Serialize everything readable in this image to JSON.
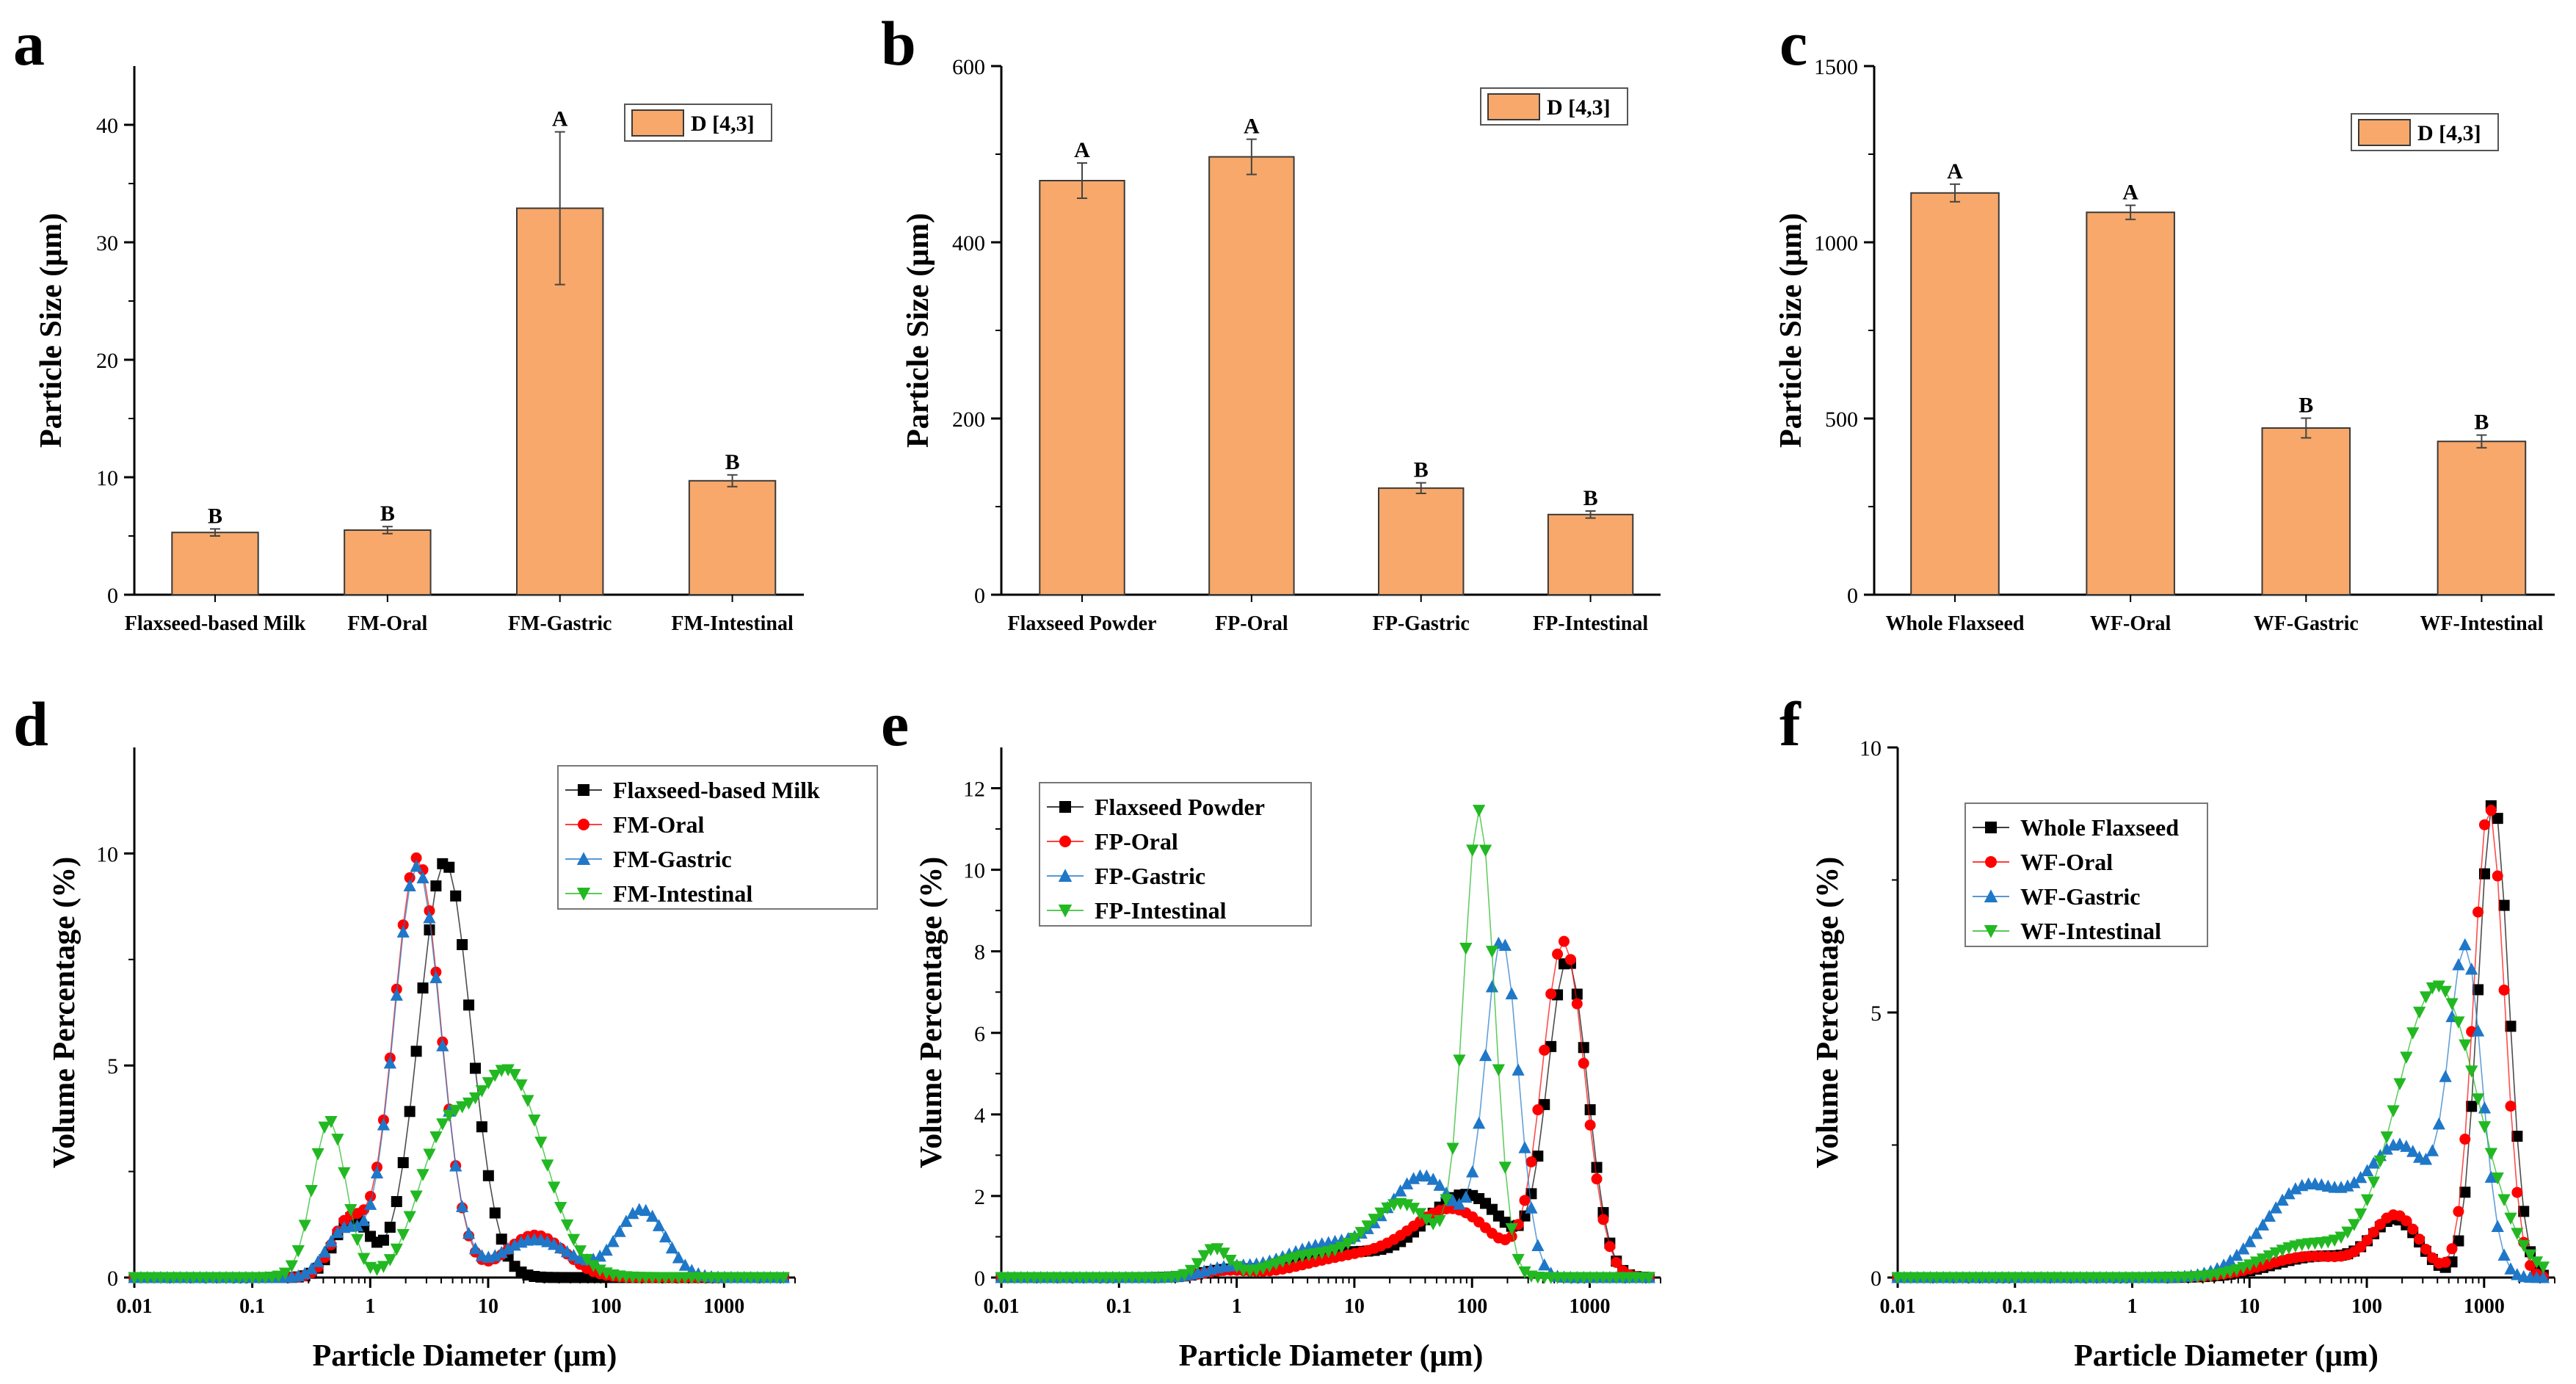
{
  "colors": {
    "bar_fill": "#F7A86A",
    "bar_stroke": "#3a3a3a",
    "series": [
      "#000000",
      "#FF0000",
      "#1F77C8",
      "#22B822"
    ]
  },
  "chart_data": [
    {
      "panel": "a",
      "type": "bar",
      "title": "",
      "xlabel": "",
      "ylabel": "Particle Size (μm)",
      "ylim": [
        0,
        45
      ],
      "yticks": [
        0,
        10,
        20,
        30,
        40
      ],
      "categories": [
        "Flaxseed-based Milk",
        "FM-Oral",
        "FM-Gastric",
        "FM-Intestinal"
      ],
      "values": [
        5.3,
        5.5,
        32.9,
        9.7
      ],
      "errors": [
        0.3,
        0.3,
        6.5,
        0.5
      ],
      "labels": [
        "B",
        "B",
        "A",
        "B"
      ],
      "legend": [
        "D [4,3]"
      ],
      "legend_position": "top-right"
    },
    {
      "panel": "b",
      "type": "bar",
      "title": "",
      "xlabel": "",
      "ylabel": "Particle Size (μm)",
      "ylim": [
        0,
        600
      ],
      "yticks": [
        0,
        200,
        400,
        600
      ],
      "categories": [
        "Flaxseed Powder",
        "FP-Oral",
        "FP-Gastric",
        "FP-Intestinal"
      ],
      "values": [
        470,
        497,
        121,
        91
      ],
      "errors": [
        20,
        20,
        6,
        4
      ],
      "labels": [
        "A",
        "A",
        "B",
        "B"
      ],
      "legend": [
        "D [4,3]"
      ],
      "legend_position": "top-right"
    },
    {
      "panel": "c",
      "type": "bar",
      "title": "",
      "xlabel": "",
      "ylabel": "Particle Size (μm)",
      "ylim": [
        0,
        1500
      ],
      "yticks": [
        0,
        500,
        1000,
        1500
      ],
      "categories": [
        "Whole Flaxseed",
        "WF-Oral",
        "WF-Gastric",
        "WF-Intestinal"
      ],
      "values": [
        1140,
        1085,
        473,
        435
      ],
      "errors": [
        25,
        20,
        28,
        18
      ],
      "labels": [
        "A",
        "A",
        "B",
        "B"
      ],
      "legend": [
        "D [4,3]"
      ],
      "legend_position": "top-right"
    },
    {
      "panel": "d",
      "type": "scatter",
      "xscale": "log",
      "xlim": [
        0.01,
        4000
      ],
      "xticks": [
        0.01,
        0.1,
        1,
        10,
        100,
        1000
      ],
      "xtick_labels": [
        "0.01",
        "0.1",
        "1",
        "10",
        "100",
        "1000"
      ],
      "ylim": [
        0,
        12.5
      ],
      "yticks": [
        0,
        5,
        10
      ],
      "xlabel": "Particle Diameter (μm)",
      "ylabel": "Volume Percentage (%)",
      "legend_position": "top-right",
      "series": [
        {
          "name": "Flaxseed-based Milk",
          "marker": "square",
          "peaks": [
            {
              "x": 0.7,
              "h": 1.4,
              "w": 0.15
            },
            {
              "x": 4.3,
              "h": 9.8,
              "w": 0.22
            }
          ]
        },
        {
          "name": "FM-Oral",
          "marker": "circle",
          "peaks": [
            {
              "x": 0.65,
              "h": 1.3,
              "w": 0.14
            },
            {
              "x": 2.5,
              "h": 9.9,
              "w": 0.2
            },
            {
              "x": 25,
              "h": 1.0,
              "w": 0.25
            }
          ]
        },
        {
          "name": "FM-Gastric",
          "marker": "triangle-up",
          "peaks": [
            {
              "x": 0.6,
              "h": 1.1,
              "w": 0.15
            },
            {
              "x": 2.5,
              "h": 9.7,
              "w": 0.2
            },
            {
              "x": 25,
              "h": 0.9,
              "w": 0.3
            },
            {
              "x": 200,
              "h": 1.6,
              "w": 0.2
            }
          ]
        },
        {
          "name": "FM-Intestinal",
          "marker": "triangle-down",
          "peaks": [
            {
              "x": 0.45,
              "h": 3.7,
              "w": 0.14
            },
            {
              "x": 4,
              "h": 2.8,
              "w": 0.22
            },
            {
              "x": 15,
              "h": 4.8,
              "w": 0.3
            }
          ]
        }
      ]
    },
    {
      "panel": "e",
      "type": "scatter",
      "xscale": "log",
      "xlim": [
        0.01,
        4000
      ],
      "xticks": [
        0.01,
        0.1,
        1,
        10,
        100,
        1000
      ],
      "xtick_labels": [
        "0.01",
        "0.1",
        "1",
        "10",
        "100",
        "1000"
      ],
      "ylim": [
        0,
        13
      ],
      "yticks": [
        0,
        2,
        4,
        6,
        8,
        10,
        12
      ],
      "xlabel": "Particle Diameter (μm)",
      "ylabel": "Volume Percentage (%)",
      "legend_position": "top-left",
      "series": [
        {
          "name": "Flaxseed Powder",
          "marker": "square",
          "peaks": [
            {
              "x": 0.8,
              "h": 0.15,
              "w": 0.2
            },
            {
              "x": 8,
              "h": 0.6,
              "w": 0.45
            },
            {
              "x": 90,
              "h": 2.0,
              "w": 0.35
            },
            {
              "x": 650,
              "h": 7.7,
              "w": 0.17
            }
          ]
        },
        {
          "name": "FP-Oral",
          "marker": "circle",
          "peaks": [
            {
              "x": 0.8,
              "h": 0.15,
              "w": 0.2
            },
            {
              "x": 10,
              "h": 0.5,
              "w": 0.45
            },
            {
              "x": 70,
              "h": 1.6,
              "w": 0.35
            },
            {
              "x": 600,
              "h": 8.2,
              "w": 0.18
            }
          ]
        },
        {
          "name": "FP-Gastric",
          "marker": "triangle-up",
          "peaks": [
            {
              "x": 0.8,
              "h": 0.2,
              "w": 0.2
            },
            {
              "x": 6,
              "h": 0.8,
              "w": 0.4
            },
            {
              "x": 40,
              "h": 2.4,
              "w": 0.3
            },
            {
              "x": 180,
              "h": 8.1,
              "w": 0.14
            }
          ]
        },
        {
          "name": "FP-Intestinal",
          "marker": "triangle-down",
          "peaks": [
            {
              "x": 0.65,
              "h": 0.7,
              "w": 0.12
            },
            {
              "x": 4,
              "h": 0.5,
              "w": 0.3
            },
            {
              "x": 25,
              "h": 1.8,
              "w": 0.3
            },
            {
              "x": 115,
              "h": 11.3,
              "w": 0.13
            }
          ]
        }
      ]
    },
    {
      "panel": "f",
      "type": "scatter",
      "xscale": "log",
      "xlim": [
        0.01,
        4000
      ],
      "xticks": [
        0.01,
        0.1,
        1,
        10,
        100,
        1000
      ],
      "xtick_labels": [
        "0.01",
        "0.1",
        "1",
        "10",
        "100",
        "1000"
      ],
      "ylim": [
        0,
        10
      ],
      "yticks": [
        0,
        5,
        10
      ],
      "xlabel": "Particle Diameter (μm)",
      "ylabel": "Volume Percentage (%)",
      "legend_position": "top-left",
      "series": [
        {
          "name": "Whole Flaxseed",
          "marker": "square",
          "peaks": [
            {
              "x": 40,
              "h": 0.4,
              "w": 0.4
            },
            {
              "x": 180,
              "h": 1.0,
              "w": 0.2
            },
            {
              "x": 1200,
              "h": 9.0,
              "w": 0.13
            }
          ]
        },
        {
          "name": "WF-Oral",
          "marker": "circle",
          "peaks": [
            {
              "x": 35,
              "h": 0.4,
              "w": 0.4
            },
            {
              "x": 180,
              "h": 1.1,
              "w": 0.2
            },
            {
              "x": 1100,
              "h": 8.9,
              "w": 0.13
            }
          ]
        },
        {
          "name": "WF-Gastric",
          "marker": "triangle-up",
          "peaks": [
            {
              "x": 30,
              "h": 1.7,
              "w": 0.35
            },
            {
              "x": 200,
              "h": 2.4,
              "w": 0.3
            },
            {
              "x": 700,
              "h": 5.8,
              "w": 0.14
            }
          ]
        },
        {
          "name": "WF-Intestinal",
          "marker": "triangle-down",
          "peaks": [
            {
              "x": 30,
              "h": 0.6,
              "w": 0.35
            },
            {
              "x": 400,
              "h": 5.5,
              "w": 0.35
            }
          ]
        }
      ]
    }
  ],
  "panel_letters": [
    "a",
    "b",
    "c",
    "d",
    "e",
    "f"
  ]
}
